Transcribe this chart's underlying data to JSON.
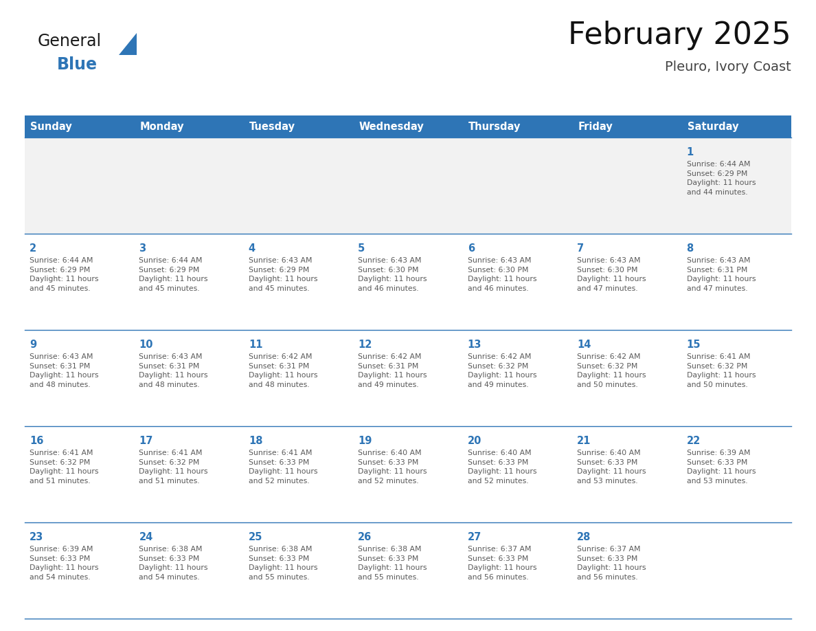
{
  "title": "February 2025",
  "subtitle": "Pleuro, Ivory Coast",
  "header_bg": "#2E75B6",
  "header_text_color": "#FFFFFF",
  "cell_border_color": "#2E75B6",
  "day_number_color": "#2E75B6",
  "info_text_color": "#595959",
  "bg_color": "#FFFFFF",
  "row1_bg": "#F2F2F2",
  "days_of_week": [
    "Sunday",
    "Monday",
    "Tuesday",
    "Wednesday",
    "Thursday",
    "Friday",
    "Saturday"
  ],
  "weeks": [
    [
      {
        "day": 0,
        "info": ""
      },
      {
        "day": 0,
        "info": ""
      },
      {
        "day": 0,
        "info": ""
      },
      {
        "day": 0,
        "info": ""
      },
      {
        "day": 0,
        "info": ""
      },
      {
        "day": 0,
        "info": ""
      },
      {
        "day": 1,
        "info": "Sunrise: 6:44 AM\nSunset: 6:29 PM\nDaylight: 11 hours\nand 44 minutes."
      }
    ],
    [
      {
        "day": 2,
        "info": "Sunrise: 6:44 AM\nSunset: 6:29 PM\nDaylight: 11 hours\nand 45 minutes."
      },
      {
        "day": 3,
        "info": "Sunrise: 6:44 AM\nSunset: 6:29 PM\nDaylight: 11 hours\nand 45 minutes."
      },
      {
        "day": 4,
        "info": "Sunrise: 6:43 AM\nSunset: 6:29 PM\nDaylight: 11 hours\nand 45 minutes."
      },
      {
        "day": 5,
        "info": "Sunrise: 6:43 AM\nSunset: 6:30 PM\nDaylight: 11 hours\nand 46 minutes."
      },
      {
        "day": 6,
        "info": "Sunrise: 6:43 AM\nSunset: 6:30 PM\nDaylight: 11 hours\nand 46 minutes."
      },
      {
        "day": 7,
        "info": "Sunrise: 6:43 AM\nSunset: 6:30 PM\nDaylight: 11 hours\nand 47 minutes."
      },
      {
        "day": 8,
        "info": "Sunrise: 6:43 AM\nSunset: 6:31 PM\nDaylight: 11 hours\nand 47 minutes."
      }
    ],
    [
      {
        "day": 9,
        "info": "Sunrise: 6:43 AM\nSunset: 6:31 PM\nDaylight: 11 hours\nand 48 minutes."
      },
      {
        "day": 10,
        "info": "Sunrise: 6:43 AM\nSunset: 6:31 PM\nDaylight: 11 hours\nand 48 minutes."
      },
      {
        "day": 11,
        "info": "Sunrise: 6:42 AM\nSunset: 6:31 PM\nDaylight: 11 hours\nand 48 minutes."
      },
      {
        "day": 12,
        "info": "Sunrise: 6:42 AM\nSunset: 6:31 PM\nDaylight: 11 hours\nand 49 minutes."
      },
      {
        "day": 13,
        "info": "Sunrise: 6:42 AM\nSunset: 6:32 PM\nDaylight: 11 hours\nand 49 minutes."
      },
      {
        "day": 14,
        "info": "Sunrise: 6:42 AM\nSunset: 6:32 PM\nDaylight: 11 hours\nand 50 minutes."
      },
      {
        "day": 15,
        "info": "Sunrise: 6:41 AM\nSunset: 6:32 PM\nDaylight: 11 hours\nand 50 minutes."
      }
    ],
    [
      {
        "day": 16,
        "info": "Sunrise: 6:41 AM\nSunset: 6:32 PM\nDaylight: 11 hours\nand 51 minutes."
      },
      {
        "day": 17,
        "info": "Sunrise: 6:41 AM\nSunset: 6:32 PM\nDaylight: 11 hours\nand 51 minutes."
      },
      {
        "day": 18,
        "info": "Sunrise: 6:41 AM\nSunset: 6:33 PM\nDaylight: 11 hours\nand 52 minutes."
      },
      {
        "day": 19,
        "info": "Sunrise: 6:40 AM\nSunset: 6:33 PM\nDaylight: 11 hours\nand 52 minutes."
      },
      {
        "day": 20,
        "info": "Sunrise: 6:40 AM\nSunset: 6:33 PM\nDaylight: 11 hours\nand 52 minutes."
      },
      {
        "day": 21,
        "info": "Sunrise: 6:40 AM\nSunset: 6:33 PM\nDaylight: 11 hours\nand 53 minutes."
      },
      {
        "day": 22,
        "info": "Sunrise: 6:39 AM\nSunset: 6:33 PM\nDaylight: 11 hours\nand 53 minutes."
      }
    ],
    [
      {
        "day": 23,
        "info": "Sunrise: 6:39 AM\nSunset: 6:33 PM\nDaylight: 11 hours\nand 54 minutes."
      },
      {
        "day": 24,
        "info": "Sunrise: 6:38 AM\nSunset: 6:33 PM\nDaylight: 11 hours\nand 54 minutes."
      },
      {
        "day": 25,
        "info": "Sunrise: 6:38 AM\nSunset: 6:33 PM\nDaylight: 11 hours\nand 55 minutes."
      },
      {
        "day": 26,
        "info": "Sunrise: 6:38 AM\nSunset: 6:33 PM\nDaylight: 11 hours\nand 55 minutes."
      },
      {
        "day": 27,
        "info": "Sunrise: 6:37 AM\nSunset: 6:33 PM\nDaylight: 11 hours\nand 56 minutes."
      },
      {
        "day": 28,
        "info": "Sunrise: 6:37 AM\nSunset: 6:33 PM\nDaylight: 11 hours\nand 56 minutes."
      },
      {
        "day": 0,
        "info": ""
      }
    ]
  ],
  "logo_text1": "General",
  "logo_text2": "Blue",
  "logo_color1": "#1a1a1a",
  "logo_color2": "#2E75B6",
  "logo_triangle_color": "#2E75B6"
}
